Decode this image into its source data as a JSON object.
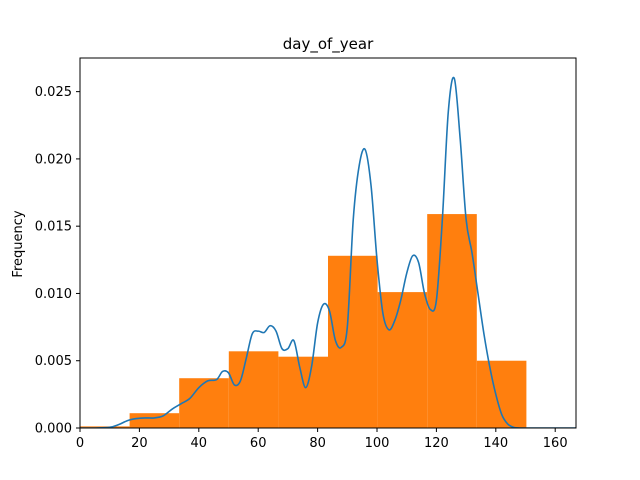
{
  "chart_data": {
    "type": "bar",
    "title": "day_of_year",
    "xlabel": "",
    "ylabel": "Frequency",
    "xlim": [
      0,
      167
    ],
    "ylim": [
      0,
      0.0275
    ],
    "grid": false,
    "xticks": [
      0,
      20,
      40,
      60,
      80,
      100,
      120,
      140,
      160
    ],
    "xtick_labels": [
      "0",
      "20",
      "40",
      "60",
      "80",
      "100",
      "120",
      "140",
      "160"
    ],
    "yticks": [
      0,
      0.005,
      0.01,
      0.015,
      0.02,
      0.025
    ],
    "ytick_labels": [
      "0.000",
      "0.005",
      "0.010",
      "0.015",
      "0.020",
      "0.025"
    ],
    "histogram": {
      "color": "#ff7f0e",
      "bin_edges": [
        0,
        16.7,
        33.4,
        50.1,
        66.8,
        83.5,
        100.2,
        116.9,
        133.6,
        150.3
      ],
      "values": [
        0.00012,
        0.0011,
        0.0037,
        0.0057,
        0.0053,
        0.0128,
        0.0101,
        0.0159,
        0.005
      ]
    },
    "kde": {
      "color": "#1f77b4",
      "x": [
        0,
        5,
        10,
        13,
        16,
        19,
        22,
        25,
        28,
        31,
        34,
        37,
        40,
        43,
        46,
        48,
        50,
        52,
        54,
        56,
        58,
        60,
        62,
        64,
        66,
        68,
        70,
        72,
        74,
        76,
        78,
        80,
        82,
        84,
        86,
        88,
        90,
        92,
        94,
        96,
        98,
        100,
        102,
        104,
        106,
        108,
        110,
        112,
        114,
        116,
        118,
        120,
        122,
        124,
        126,
        128,
        130,
        132,
        134,
        136,
        138,
        140,
        142,
        144,
        146,
        148,
        150,
        155,
        167
      ],
      "y": [
        0,
        0,
        5e-05,
        0.00025,
        0.00055,
        0.0007,
        0.00075,
        0.00075,
        0.0009,
        0.0014,
        0.0018,
        0.0022,
        0.003,
        0.0035,
        0.0036,
        0.0042,
        0.0041,
        0.0032,
        0.0035,
        0.0052,
        0.007,
        0.0072,
        0.0071,
        0.0076,
        0.0072,
        0.0059,
        0.0059,
        0.0065,
        0.0045,
        0.003,
        0.0046,
        0.0078,
        0.0092,
        0.0087,
        0.0065,
        0.006,
        0.0075,
        0.0155,
        0.0195,
        0.0207,
        0.018,
        0.0125,
        0.0085,
        0.0073,
        0.008,
        0.0095,
        0.0115,
        0.0128,
        0.0123,
        0.01,
        0.0088,
        0.0095,
        0.0155,
        0.0235,
        0.026,
        0.0215,
        0.0155,
        0.013,
        0.01,
        0.007,
        0.0045,
        0.0025,
        0.001,
        0.0003,
        5e-05,
        0,
        0,
        0,
        0
      ]
    }
  }
}
